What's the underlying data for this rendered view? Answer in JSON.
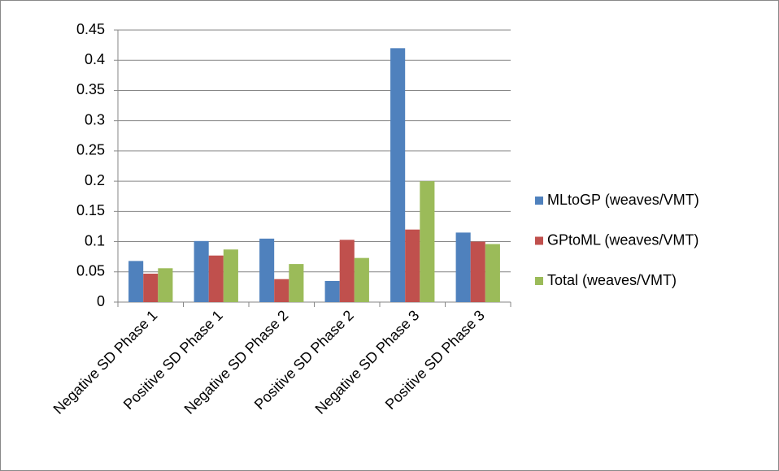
{
  "chart_data": {
    "type": "bar",
    "categories": [
      "Negative SD Phase 1",
      "Positive SD Phase 1",
      "Negative SD Phase 2",
      "Positive SD Phase 2",
      "Negative SD Phase 3",
      "Positive SD Phase 3"
    ],
    "series": [
      {
        "name": "MLtoGP (weaves/VMT)",
        "color": "#4f81bd",
        "values": [
          0.068,
          0.101,
          0.105,
          0.035,
          0.42,
          0.115
        ]
      },
      {
        "name": "GPtoML (weaves/VMT)",
        "color": "#c0504d",
        "values": [
          0.047,
          0.077,
          0.038,
          0.103,
          0.12,
          0.1
        ]
      },
      {
        "name": "Total (weaves/VMT)",
        "color": "#9bbb59",
        "values": [
          0.056,
          0.087,
          0.063,
          0.073,
          0.2,
          0.096
        ]
      }
    ],
    "ylim": [
      0,
      0.45
    ],
    "yticks": [
      0,
      0.05,
      0.1,
      0.15,
      0.2,
      0.25,
      0.3,
      0.35,
      0.4,
      0.45
    ],
    "grid": true,
    "legend": "right"
  }
}
